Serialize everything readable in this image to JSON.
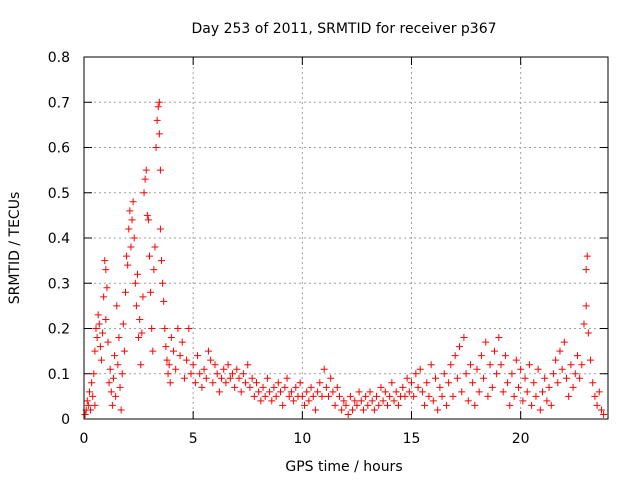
{
  "chart_data": {
    "type": "scatter",
    "title": "Day 253 of 2011, SRMTID for receiver p367",
    "xlabel": "GPS time / hours",
    "ylabel": "SRMTID / TECUs",
    "xlim": [
      0,
      24
    ],
    "ylim": [
      0,
      0.8
    ],
    "xticks": [
      0,
      5,
      10,
      15,
      20
    ],
    "yticks": [
      0,
      0.1,
      0.2,
      0.3,
      0.4,
      0.5,
      0.6,
      0.7,
      0.8
    ],
    "xtick_labels": [
      "0",
      "5",
      "10",
      "15",
      "20"
    ],
    "ytick_labels": [
      "0",
      "0.1",
      "0.2",
      "0.3",
      "0.4",
      "0.5",
      "0.6",
      "0.7",
      "0.8"
    ],
    "grid": true,
    "marker": "+",
    "color": "#ff0000",
    "series": [
      {
        "name": "SRMTID",
        "points": [
          [
            0.05,
            0.01
          ],
          [
            0.1,
            0.02
          ],
          [
            0.15,
            0.04
          ],
          [
            0.2,
            0.03
          ],
          [
            0.25,
            0.06
          ],
          [
            0.3,
            0.02
          ],
          [
            0.35,
            0.08
          ],
          [
            0.4,
            0.05
          ],
          [
            0.45,
            0.1
          ],
          [
            0.5,
            0.03
          ],
          [
            0.5,
            0.15
          ],
          [
            0.55,
            0.2
          ],
          [
            0.6,
            0.18
          ],
          [
            0.65,
            0.23
          ],
          [
            0.7,
            0.21
          ],
          [
            0.75,
            0.16
          ],
          [
            0.8,
            0.13
          ],
          [
            0.85,
            0.19
          ],
          [
            0.9,
            0.27
          ],
          [
            0.95,
            0.35
          ],
          [
            1.0,
            0.33
          ],
          [
            1.0,
            0.22
          ],
          [
            1.05,
            0.29
          ],
          [
            1.1,
            0.17
          ],
          [
            1.15,
            0.08
          ],
          [
            1.2,
            0.11
          ],
          [
            1.25,
            0.06
          ],
          [
            1.3,
            0.03
          ],
          [
            1.35,
            0.09
          ],
          [
            1.4,
            0.14
          ],
          [
            1.45,
            0.05
          ],
          [
            1.5,
            0.25
          ],
          [
            1.55,
            0.12
          ],
          [
            1.6,
            0.18
          ],
          [
            1.65,
            0.07
          ],
          [
            1.7,
            0.02
          ],
          [
            1.75,
            0.1
          ],
          [
            1.8,
            0.21
          ],
          [
            1.85,
            0.15
          ],
          [
            1.9,
            0.28
          ],
          [
            1.95,
            0.36
          ],
          [
            2.0,
            0.34
          ],
          [
            2.05,
            0.42
          ],
          [
            2.1,
            0.46
          ],
          [
            2.15,
            0.38
          ],
          [
            2.2,
            0.44
          ],
          [
            2.25,
            0.48
          ],
          [
            2.3,
            0.4
          ],
          [
            2.35,
            0.3
          ],
          [
            2.4,
            0.25
          ],
          [
            2.45,
            0.32
          ],
          [
            2.5,
            0.18
          ],
          [
            2.55,
            0.22
          ],
          [
            2.6,
            0.12
          ],
          [
            2.65,
            0.19
          ],
          [
            2.7,
            0.27
          ],
          [
            2.75,
            0.5
          ],
          [
            2.8,
            0.53
          ],
          [
            2.85,
            0.55
          ],
          [
            2.9,
            0.45
          ],
          [
            2.95,
            0.44
          ],
          [
            3.0,
            0.36
          ],
          [
            3.05,
            0.28
          ],
          [
            3.1,
            0.2
          ],
          [
            3.15,
            0.15
          ],
          [
            3.2,
            0.33
          ],
          [
            3.25,
            0.38
          ],
          [
            3.3,
            0.6
          ],
          [
            3.35,
            0.66
          ],
          [
            3.4,
            0.69
          ],
          [
            3.45,
            0.7
          ],
          [
            3.45,
            0.63
          ],
          [
            3.5,
            0.55
          ],
          [
            3.5,
            0.42
          ],
          [
            3.55,
            0.35
          ],
          [
            3.6,
            0.3
          ],
          [
            3.65,
            0.26
          ],
          [
            3.7,
            0.2
          ],
          [
            3.75,
            0.16
          ],
          [
            3.8,
            0.13
          ],
          [
            3.85,
            0.1
          ],
          [
            3.9,
            0.12
          ],
          [
            3.95,
            0.08
          ],
          [
            4.0,
            0.18
          ],
          [
            4.1,
            0.15
          ],
          [
            4.2,
            0.11
          ],
          [
            4.3,
            0.2
          ],
          [
            4.4,
            0.14
          ],
          [
            4.5,
            0.17
          ],
          [
            4.6,
            0.09
          ],
          [
            4.7,
            0.13
          ],
          [
            4.8,
            0.2
          ],
          [
            4.9,
            0.1
          ],
          [
            5.0,
            0.12
          ],
          [
            5.1,
            0.08
          ],
          [
            5.2,
            0.14
          ],
          [
            5.3,
            0.1
          ],
          [
            5.4,
            0.07
          ],
          [
            5.5,
            0.11
          ],
          [
            5.6,
            0.09
          ],
          [
            5.7,
            0.15
          ],
          [
            5.8,
            0.13
          ],
          [
            5.9,
            0.08
          ],
          [
            6.0,
            0.12
          ],
          [
            6.1,
            0.1
          ],
          [
            6.2,
            0.06
          ],
          [
            6.3,
            0.09
          ],
          [
            6.4,
            0.11
          ],
          [
            6.5,
            0.08
          ],
          [
            6.6,
            0.12
          ],
          [
            6.7,
            0.09
          ],
          [
            6.8,
            0.1
          ],
          [
            6.9,
            0.07
          ],
          [
            7.0,
            0.11
          ],
          [
            7.1,
            0.09
          ],
          [
            7.2,
            0.06
          ],
          [
            7.3,
            0.1
          ],
          [
            7.4,
            0.08
          ],
          [
            7.5,
            0.12
          ],
          [
            7.6,
            0.07
          ],
          [
            7.7,
            0.09
          ],
          [
            7.8,
            0.05
          ],
          [
            7.9,
            0.08
          ],
          [
            8.0,
            0.06
          ],
          [
            8.1,
            0.04
          ],
          [
            8.2,
            0.07
          ],
          [
            8.3,
            0.05
          ],
          [
            8.4,
            0.09
          ],
          [
            8.5,
            0.06
          ],
          [
            8.6,
            0.04
          ],
          [
            8.7,
            0.07
          ],
          [
            8.8,
            0.05
          ],
          [
            8.9,
            0.08
          ],
          [
            9.0,
            0.06
          ],
          [
            9.1,
            0.03
          ],
          [
            9.2,
            0.07
          ],
          [
            9.3,
            0.09
          ],
          [
            9.4,
            0.05
          ],
          [
            9.5,
            0.06
          ],
          [
            9.6,
            0.04
          ],
          [
            9.7,
            0.07
          ],
          [
            9.8,
            0.05
          ],
          [
            9.9,
            0.08
          ],
          [
            10.0,
            0.05
          ],
          [
            10.1,
            0.03
          ],
          [
            10.2,
            0.06
          ],
          [
            10.3,
            0.04
          ],
          [
            10.4,
            0.07
          ],
          [
            10.5,
            0.05
          ],
          [
            10.6,
            0.02
          ],
          [
            10.7,
            0.06
          ],
          [
            10.8,
            0.08
          ],
          [
            10.9,
            0.05
          ],
          [
            11.0,
            0.11
          ],
          [
            11.1,
            0.07
          ],
          [
            11.2,
            0.05
          ],
          [
            11.3,
            0.09
          ],
          [
            11.4,
            0.06
          ],
          [
            11.5,
            0.03
          ],
          [
            11.6,
            0.07
          ],
          [
            11.7,
            0.05
          ],
          [
            11.8,
            0.02
          ],
          [
            11.9,
            0.04
          ],
          [
            12.0,
            0.03
          ],
          [
            12.1,
            0.01
          ],
          [
            12.2,
            0.05
          ],
          [
            12.3,
            0.02
          ],
          [
            12.4,
            0.04
          ],
          [
            12.5,
            0.03
          ],
          [
            12.6,
            0.06
          ],
          [
            12.7,
            0.04
          ],
          [
            12.8,
            0.02
          ],
          [
            12.9,
            0.05
          ],
          [
            13.0,
            0.03
          ],
          [
            13.1,
            0.06
          ],
          [
            13.2,
            0.04
          ],
          [
            13.3,
            0.02
          ],
          [
            13.4,
            0.05
          ],
          [
            13.5,
            0.03
          ],
          [
            13.6,
            0.07
          ],
          [
            13.7,
            0.04
          ],
          [
            13.8,
            0.06
          ],
          [
            13.9,
            0.03
          ],
          [
            14.0,
            0.05
          ],
          [
            14.1,
            0.08
          ],
          [
            14.2,
            0.04
          ],
          [
            14.3,
            0.06
          ],
          [
            14.4,
            0.03
          ],
          [
            14.5,
            0.05
          ],
          [
            14.6,
            0.07
          ],
          [
            14.7,
            0.05
          ],
          [
            14.8,
            0.09
          ],
          [
            14.9,
            0.06
          ],
          [
            15.0,
            0.08
          ],
          [
            15.1,
            0.05
          ],
          [
            15.2,
            0.1
          ],
          [
            15.3,
            0.07
          ],
          [
            15.4,
            0.11
          ],
          [
            15.5,
            0.06
          ],
          [
            15.6,
            0.03
          ],
          [
            15.7,
            0.08
          ],
          [
            15.8,
            0.05
          ],
          [
            15.9,
            0.12
          ],
          [
            16.0,
            0.04
          ],
          [
            16.1,
            0.09
          ],
          [
            16.2,
            0.02
          ],
          [
            16.3,
            0.07
          ],
          [
            16.4,
            0.05
          ],
          [
            16.5,
            0.1
          ],
          [
            16.6,
            0.03
          ],
          [
            16.7,
            0.08
          ],
          [
            16.8,
            0.12
          ],
          [
            16.9,
            0.05
          ],
          [
            17.0,
            0.14
          ],
          [
            17.1,
            0.09
          ],
          [
            17.2,
            0.16
          ],
          [
            17.3,
            0.06
          ],
          [
            17.4,
            0.18
          ],
          [
            17.5,
            0.1
          ],
          [
            17.6,
            0.04
          ],
          [
            17.7,
            0.12
          ],
          [
            17.8,
            0.08
          ],
          [
            17.9,
            0.03
          ],
          [
            18.0,
            0.11
          ],
          [
            18.1,
            0.06
          ],
          [
            18.2,
            0.14
          ],
          [
            18.3,
            0.09
          ],
          [
            18.4,
            0.17
          ],
          [
            18.5,
            0.05
          ],
          [
            18.6,
            0.12
          ],
          [
            18.7,
            0.07
          ],
          [
            18.8,
            0.15
          ],
          [
            18.9,
            0.1
          ],
          [
            19.0,
            0.18
          ],
          [
            19.1,
            0.12
          ],
          [
            19.2,
            0.06
          ],
          [
            19.3,
            0.14
          ],
          [
            19.4,
            0.08
          ],
          [
            19.5,
            0.03
          ],
          [
            19.6,
            0.1
          ],
          [
            19.7,
            0.05
          ],
          [
            19.8,
            0.13
          ],
          [
            19.9,
            0.07
          ],
          [
            20.0,
            0.11
          ],
          [
            20.1,
            0.04
          ],
          [
            20.2,
            0.09
          ],
          [
            20.3,
            0.06
          ],
          [
            20.4,
            0.12
          ],
          [
            20.5,
            0.03
          ],
          [
            20.6,
            0.08
          ],
          [
            20.7,
            0.05
          ],
          [
            20.8,
            0.11
          ],
          [
            20.9,
            0.02
          ],
          [
            21.0,
            0.06
          ],
          [
            21.1,
            0.09
          ],
          [
            21.2,
            0.04
          ],
          [
            21.3,
            0.07
          ],
          [
            21.4,
            0.03
          ],
          [
            21.5,
            0.1
          ],
          [
            21.6,
            0.13
          ],
          [
            21.7,
            0.08
          ],
          [
            21.8,
            0.15
          ],
          [
            21.9,
            0.11
          ],
          [
            22.0,
            0.17
          ],
          [
            22.1,
            0.09
          ],
          [
            22.2,
            0.05
          ],
          [
            22.3,
            0.12
          ],
          [
            22.4,
            0.07
          ],
          [
            22.5,
            0.1
          ],
          [
            22.6,
            0.14
          ],
          [
            22.7,
            0.09
          ],
          [
            22.8,
            0.12
          ],
          [
            22.9,
            0.21
          ],
          [
            23.0,
            0.25
          ],
          [
            23.0,
            0.33
          ],
          [
            23.05,
            0.36
          ],
          [
            23.1,
            0.19
          ],
          [
            23.2,
            0.13
          ],
          [
            23.3,
            0.08
          ],
          [
            23.4,
            0.05
          ],
          [
            23.5,
            0.03
          ],
          [
            23.6,
            0.06
          ],
          [
            23.7,
            0.02
          ],
          [
            23.8,
            0.01
          ]
        ]
      }
    ]
  }
}
